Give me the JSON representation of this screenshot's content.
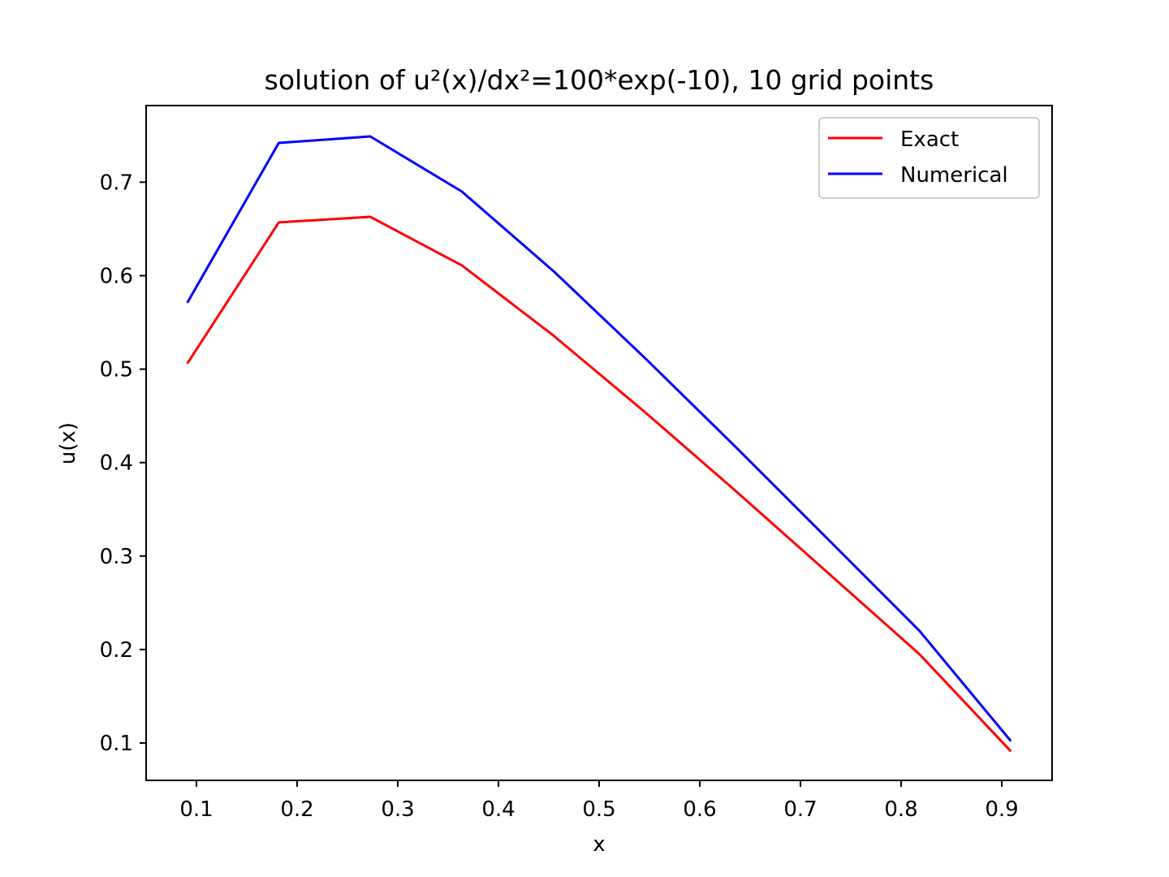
{
  "chart_data": {
    "type": "line",
    "title": "solution of u²(x)/dx²=100*exp(-10), 10 grid points",
    "xlabel": "x",
    "ylabel": "u(x)",
    "xlim": [
      0.05,
      0.95
    ],
    "ylim": [
      0.06,
      0.782
    ],
    "xticks": [
      0.1,
      0.2,
      0.3,
      0.4,
      0.5,
      0.6,
      0.7,
      0.8,
      0.9
    ],
    "yticks": [
      0.1,
      0.2,
      0.3,
      0.4,
      0.5,
      0.6,
      0.7
    ],
    "grid": false,
    "legend_position": "top-right",
    "x": [
      0.0909,
      0.1818,
      0.2727,
      0.3636,
      0.4545,
      0.5455,
      0.6364,
      0.7273,
      0.8182,
      0.9091
    ],
    "series": [
      {
        "name": "Exact",
        "color": "#ff0000",
        "values": [
          0.506,
          0.657,
          0.663,
          0.611,
          0.536,
          0.454,
          0.369,
          0.282,
          0.195,
          0.091
        ]
      },
      {
        "name": "Numerical",
        "color": "#0000ff",
        "values": [
          0.571,
          0.742,
          0.749,
          0.69,
          0.605,
          0.512,
          0.416,
          0.318,
          0.22,
          0.102
        ]
      }
    ]
  }
}
